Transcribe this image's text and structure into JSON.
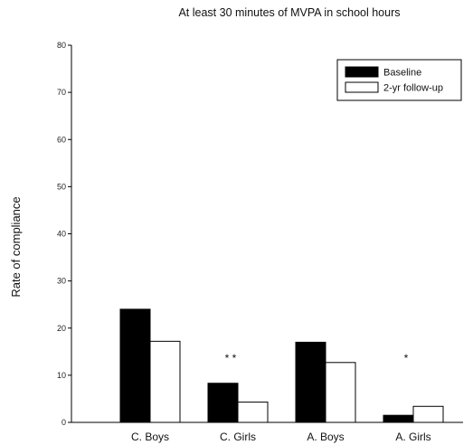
{
  "chart_data": {
    "type": "bar",
    "title": "At least 30 minutes of MVPA in school hours",
    "ylabel": "Rate of compliance",
    "xlabel": "",
    "ylim": [
      0,
      80
    ],
    "yticks": [
      0,
      10,
      20,
      30,
      40,
      50,
      60,
      70,
      80
    ],
    "categories": [
      "C. Boys",
      "C. Girls",
      "A. Boys",
      "A. Girls"
    ],
    "series": [
      {
        "name": "Baseline",
        "values": [
          24,
          8.3,
          17,
          1.5
        ],
        "fill": "#000000"
      },
      {
        "name": "2-yr follow-up",
        "values": [
          17.2,
          4.3,
          12.7,
          3.4
        ],
        "fill": "#ffffff"
      }
    ],
    "annotations": [
      {
        "category": "C. Girls",
        "text": "* *"
      },
      {
        "category": "A. Girls",
        "text": "*"
      }
    ],
    "legend": "top-right",
    "grid": false
  }
}
